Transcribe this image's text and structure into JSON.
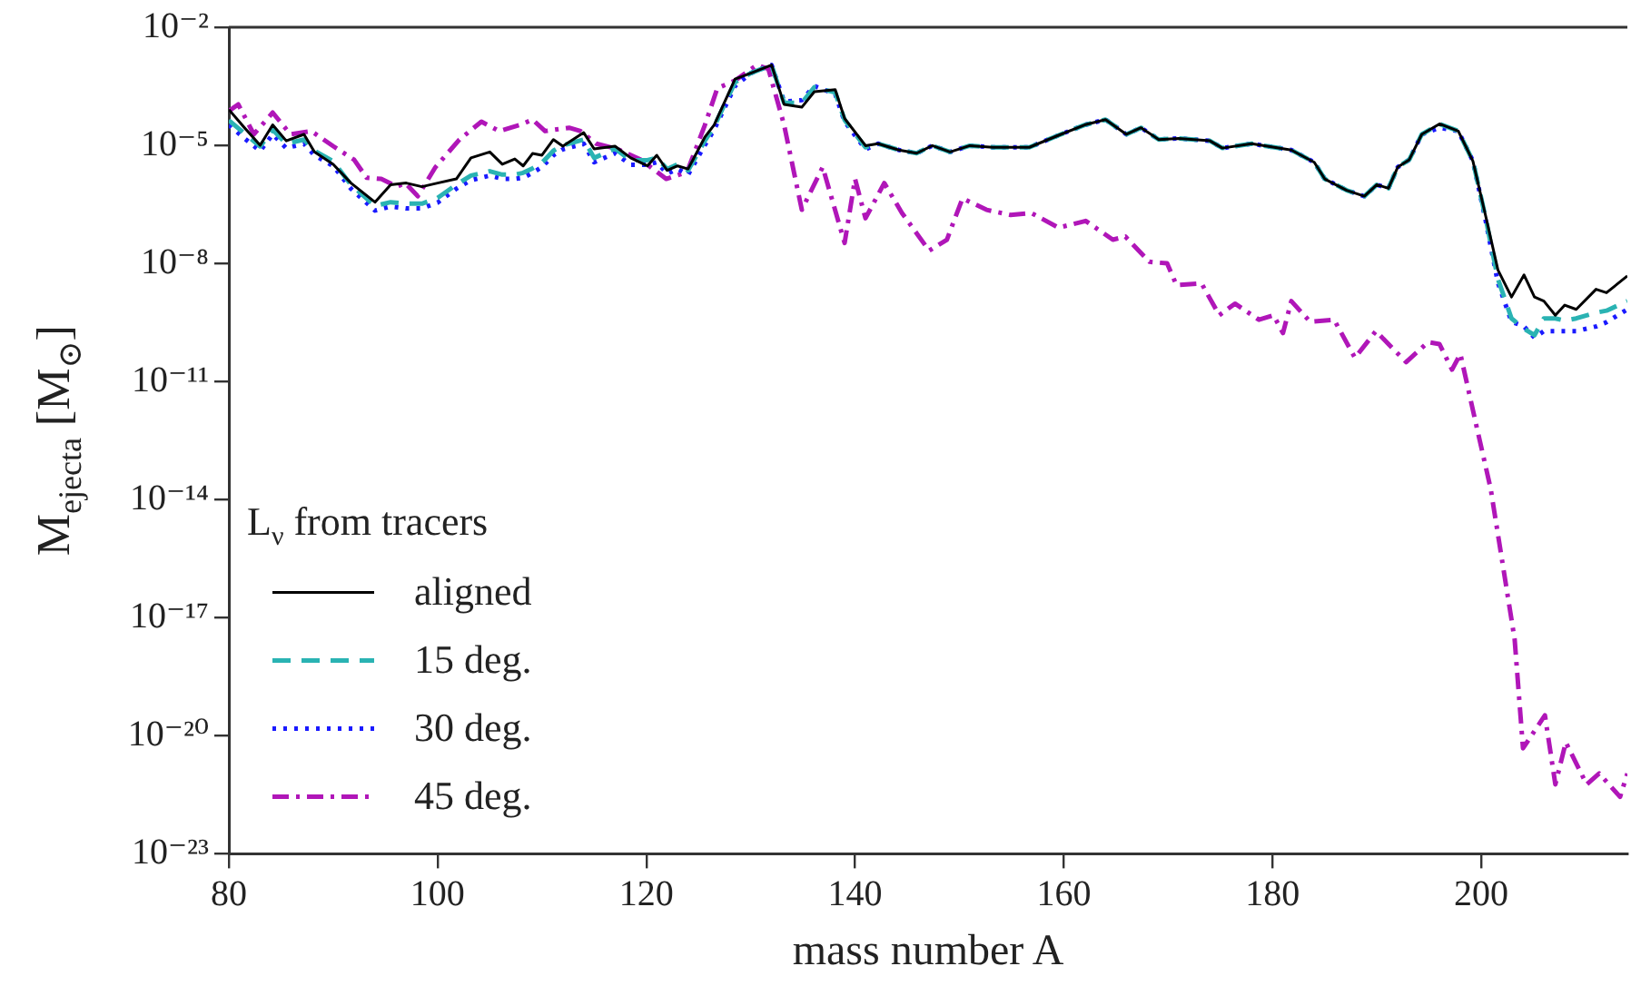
{
  "chart_data": {
    "type": "line",
    "xlabel": "mass number A",
    "ylabel": "M$_{ejecta}$ [M$_{⊙}$]",
    "legend_title": "L$_{ν}$ from tracers",
    "legend": "bottom left",
    "log": "y",
    "xlim": [
      80,
      214
    ],
    "xticks": [
      80,
      100,
      120,
      140,
      160,
      180,
      200
    ],
    "ylim": [
      1e-23,
      0.01
    ],
    "yticks": [
      {
        "value": 0.01,
        "label": "10⁻²"
      },
      {
        "value": 1e-05,
        "label": "10⁻⁵"
      },
      {
        "value": 1e-08,
        "label": "10⁻⁸"
      },
      {
        "value": 1e-11,
        "label": "10⁻¹¹"
      },
      {
        "value": 1e-14,
        "label": "10⁻¹⁴"
      },
      {
        "value": 1e-17,
        "label": "10⁻¹⁷"
      },
      {
        "value": 1e-20,
        "label": "10⁻²⁰"
      },
      {
        "value": 1e-23,
        "label": "10⁻²³"
      }
    ],
    "series": [
      {
        "name": "aligned",
        "color": "#000000",
        "line_style": "solid",
        "x": [
          80,
          81.5,
          83,
          84.2,
          85.5,
          87.2,
          88.2,
          90,
          91.7,
          94,
          95.5,
          97,
          98.5,
          100,
          101.8,
          103.2,
          105,
          106.2,
          107.4,
          108.2,
          109.1,
          110,
          111.1,
          112,
          114,
          115,
          117,
          118.5,
          120.1,
          121,
          122,
          123,
          124,
          125.6,
          126.5,
          128.5,
          130,
          132,
          133.2,
          134.9,
          136.1,
          138.1,
          139,
          141,
          142.2,
          144.2,
          145.9,
          147.4,
          149.1,
          151,
          153.2,
          156.7,
          159.5,
          162,
          164,
          166,
          167.4,
          169.1,
          171,
          174,
          175.2,
          178,
          181.8,
          184,
          185,
          187.1,
          188.8,
          190,
          191.1,
          192,
          193.1,
          194.3,
          196,
          197.8,
          199.2,
          200.4,
          201.6,
          202.9,
          204.1,
          205.1,
          206,
          207.1,
          208,
          209.1,
          211,
          212,
          214
        ],
        "values": [
          8.1e-05,
          2.8e-05,
          1e-05,
          3.3e-05,
          1.3e-05,
          1.9e-05,
          6.8e-06,
          3.3e-06,
          1.1e-06,
          3.6e-07,
          1e-06,
          1.1e-06,
          8.9e-07,
          1.1e-06,
          1.4e-06,
          4.8e-06,
          6.8e-06,
          3.3e-06,
          4.5e-06,
          3e-06,
          6.2e-06,
          5.6e-06,
          1.4e-05,
          9.5e-06,
          2.1e-05,
          8.1e-06,
          9.5e-06,
          4.8e-06,
          3e-06,
          5.6e-06,
          2.3e-06,
          3e-06,
          2.5e-06,
          1.6e-05,
          3.3e-05,
          0.00048,
          0.00068,
          0.0011,
          0.00011,
          9.3e-05,
          0.00023,
          0.00026,
          4.8e-05,
          9.8e-06,
          1.1e-05,
          7.6e-06,
          6.3e-06,
          9.8e-06,
          6.8e-06,
          9.8e-06,
          8.9e-06,
          8.9e-06,
          1.8e-05,
          3.3e-05,
          4.5e-05,
          1.9e-05,
          2.8e-05,
          1.4e-05,
          1.5e-05,
          1.3e-05,
          8.5e-06,
          1.1e-05,
          7.6e-06,
          3.7e-06,
          1.4e-06,
          7.2e-07,
          5.1e-07,
          1e-06,
          8.1e-07,
          2.8e-06,
          4.3e-06,
          1.9e-05,
          3.5e-05,
          2.3e-05,
          4e-06,
          1.7e-07,
          6.8e-09,
          1.4e-09,
          5.1e-09,
          1.4e-09,
          1.1e-09,
          4.8e-10,
          8.7e-10,
          6.8e-10,
          2.2e-09,
          1.8e-09,
          4.8e-09
        ]
      },
      {
        "name": "15 deg.",
        "color": "#2ab3b3",
        "line_style": "dashed",
        "x": [
          80,
          81.5,
          83,
          84.2,
          85.5,
          87.2,
          88.2,
          90,
          91.7,
          94,
          95.5,
          97,
          98.5,
          100,
          101.8,
          103.2,
          105,
          106.2,
          107.4,
          108.2,
          109.1,
          110,
          111.1,
          112,
          114,
          115,
          117,
          118.5,
          120.1,
          121,
          122,
          123,
          124,
          125.6,
          126.5,
          128.5,
          130,
          132,
          133.2,
          134.9,
          136.1,
          138.1,
          139,
          141,
          142.2,
          144.2,
          145.9,
          147.4,
          149.1,
          151,
          153.2,
          156.7,
          159.5,
          162,
          164,
          166,
          167.4,
          169.1,
          171,
          174,
          175.2,
          178,
          181.8,
          184,
          185,
          187.1,
          188.8,
          190,
          191.1,
          192,
          193.1,
          194.3,
          196,
          197.8,
          199.2,
          200.4,
          201.6,
          202.9,
          204.1,
          205.1,
          206,
          207.1,
          208,
          209.1,
          211,
          212,
          214
        ],
        "values": [
          4.3e-05,
          2e-05,
          9.4e-06,
          2.5e-05,
          1.1e-05,
          1.4e-05,
          7.3e-06,
          3.9e-06,
          1e-06,
          2.9e-07,
          3.6e-07,
          3.3e-07,
          3.3e-07,
          4.6e-07,
          1e-06,
          1.7e-06,
          2.2e-06,
          1.8e-06,
          1.8e-06,
          2e-06,
          2.6e-06,
          3.6e-06,
          7.3e-06,
          1e-05,
          1.4e-05,
          4.8e-06,
          8.2e-06,
          4.2e-06,
          4.2e-06,
          4.8e-06,
          2.5e-06,
          3.3e-06,
          2.3e-06,
          1.3e-05,
          3e-05,
          0.0004,
          0.00068,
          0.0011,
          0.00012,
          0.00012,
          0.0003,
          0.00022,
          4.4e-05,
          8.9e-06,
          1.1e-05,
          7.6e-06,
          6.3e-06,
          9.8e-06,
          6.8e-06,
          9.8e-06,
          8.9e-06,
          8.9e-06,
          1.8e-05,
          3.3e-05,
          4.5e-05,
          1.9e-05,
          2.8e-05,
          1.4e-05,
          1.5e-05,
          1.3e-05,
          8.5e-06,
          1.1e-05,
          7.6e-06,
          3.7e-06,
          1.4e-06,
          7.2e-07,
          5.1e-07,
          1e-06,
          8.1e-07,
          2.8e-06,
          4.3e-06,
          1.9e-05,
          3.5e-05,
          2.3e-05,
          4e-06,
          1.5e-07,
          4e-09,
          4e-10,
          2.2e-10,
          1.5e-10,
          4e-10,
          4e-10,
          3.5e-10,
          4e-10,
          5.6e-10,
          6.3e-10,
          1.1e-09
        ]
      },
      {
        "name": "30 deg.",
        "color": "#1a1aff",
        "line_style": "dotted",
        "x": [
          80,
          81.5,
          83,
          84.2,
          85.5,
          87.2,
          88.2,
          90,
          91.7,
          94,
          95.5,
          97,
          98.5,
          100,
          101.8,
          103.2,
          105,
          106.2,
          107.4,
          108.2,
          109.1,
          110,
          111.1,
          112,
          114,
          115,
          117,
          118.5,
          120.1,
          121,
          122,
          123,
          124,
          125.6,
          126.5,
          128.5,
          130,
          132,
          133.2,
          134.9,
          136.1,
          138.1,
          139,
          141,
          142.2,
          144.2,
          145.9,
          147.4,
          149.1,
          151,
          153.2,
          156.7,
          159.5,
          162,
          164,
          166,
          167.4,
          169.1,
          171,
          174,
          175.2,
          178,
          181.8,
          184,
          185,
          187.1,
          188.8,
          190,
          191.1,
          192,
          193.1,
          194.3,
          196,
          197.8,
          199.2,
          200.4,
          201.6,
          202.9,
          204.1,
          205.1,
          206,
          207.1,
          208,
          209.1,
          211,
          212,
          214
        ],
        "values": [
          3.3e-05,
          1.5e-05,
          7.2e-06,
          1.9e-05,
          8.5e-06,
          1.1e-05,
          5.6e-06,
          3e-06,
          7.9e-07,
          2.2e-07,
          2.8e-07,
          2.5e-07,
          2.5e-07,
          3.5e-07,
          7.9e-07,
          1.3e-06,
          1.7e-06,
          1.4e-06,
          1.4e-06,
          1.5e-06,
          2e-06,
          2.8e-06,
          5.6e-06,
          7.9e-06,
          1.1e-05,
          3.7e-06,
          6.3e-06,
          3.2e-06,
          3.2e-06,
          3.7e-06,
          1.9e-06,
          2.5e-06,
          1.8e-06,
          1e-05,
          2.5e-05,
          0.00032,
          0.00068,
          0.0011,
          0.00013,
          0.00014,
          0.00032,
          0.0002,
          4e-05,
          7.9e-06,
          1.1e-05,
          7.6e-06,
          6.3e-06,
          9.8e-06,
          6.8e-06,
          9.8e-06,
          8.9e-06,
          8.9e-06,
          1.8e-05,
          3.3e-05,
          4.5e-05,
          1.9e-05,
          2.8e-05,
          1.4e-05,
          1.5e-05,
          1.3e-05,
          8.5e-06,
          1.1e-05,
          7.6e-06,
          3.7e-06,
          1.4e-06,
          7.2e-07,
          5.1e-07,
          1e-06,
          8.1e-07,
          2.8e-06,
          4.3e-06,
          1.9e-05,
          2.8e-05,
          2.3e-05,
          4e-06,
          1.3e-07,
          3.2e-09,
          3.3e-10,
          2.5e-10,
          1.3e-10,
          1.9e-10,
          1.9e-10,
          1.9e-10,
          1.9e-10,
          2.5e-10,
          3.2e-10,
          6.8e-10
        ]
      },
      {
        "name": "45 deg.",
        "color": "#b016b8",
        "line_style": "dashdot",
        "x": [
          80,
          80.9,
          82.4,
          84.2,
          85.9,
          87.9,
          90,
          92,
          93.2,
          94.6,
          96.1,
          96.9,
          98.1,
          99.8,
          102.1,
          104.2,
          105.9,
          107.9,
          109.1,
          110.3,
          112.6,
          113.7,
          115.2,
          117.2,
          119.5,
          121.9,
          123.9,
          125.6,
          126.8,
          128.5,
          130.6,
          131.7,
          133.2,
          134.9,
          136.9,
          139,
          140,
          141,
          142.8,
          144.5,
          147.1,
          148.8,
          150.3,
          152.6,
          154.9,
          156.9,
          159.5,
          162.1,
          164.7,
          165.9,
          168.2,
          169.9,
          170.8,
          173.2,
          174.9,
          176.4,
          178.7,
          180.1,
          181,
          181.8,
          183.6,
          185.9,
          187.9,
          189.9,
          192.8,
          194.9,
          196,
          197.2,
          198,
          199.6,
          200.9,
          202,
          203.2,
          204,
          206.1,
          207.1,
          208.1,
          210.1,
          211.3,
          213.3,
          214
        ],
        "values": [
          7.4e-05,
          0.00011,
          1.9e-05,
          6.8e-05,
          1.9e-05,
          2.3e-05,
          9.5e-06,
          4.3e-06,
          1.5e-06,
          1.4e-06,
          8.9e-07,
          1.1e-06,
          5.1e-07,
          2.8e-06,
          1.4e-05,
          4e-05,
          2.3e-05,
          3.3e-05,
          4.5e-05,
          2.3e-05,
          2.8e-05,
          2.3e-05,
          1.1e-05,
          8.1e-06,
          4.3e-06,
          1.4e-06,
          2.1e-06,
          3.2e-05,
          0.00028,
          0.00044,
          0.0011,
          0.00087,
          3.3e-05,
          2.3e-07,
          2.8e-06,
          3.3e-08,
          1.4e-06,
          1.4e-07,
          1.1e-06,
          1.9e-07,
          2.1e-08,
          4e-08,
          4.5e-07,
          2.3e-07,
          1.7e-07,
          1.9e-07,
          8.1e-08,
          1.2e-07,
          4e-08,
          4.8e-08,
          1.1e-08,
          1e-08,
          2.8e-09,
          3.1e-09,
          4.8e-10,
          9.5e-10,
          3.7e-10,
          4.8e-10,
          1.7e-10,
          1.1e-09,
          3.3e-10,
          3.7e-10,
          4e-11,
          1.9e-10,
          3.1e-11,
          1e-10,
          8.9e-11,
          2e-11,
          5e-11,
          6.3e-13,
          1.9e-14,
          2.8e-16,
          2.8e-18,
          4.8e-21,
          3.3e-20,
          5.8e-22,
          6.8e-21,
          5.8e-22,
          1.1e-21,
          2.8e-22,
          1.1e-21
        ]
      }
    ]
  }
}
